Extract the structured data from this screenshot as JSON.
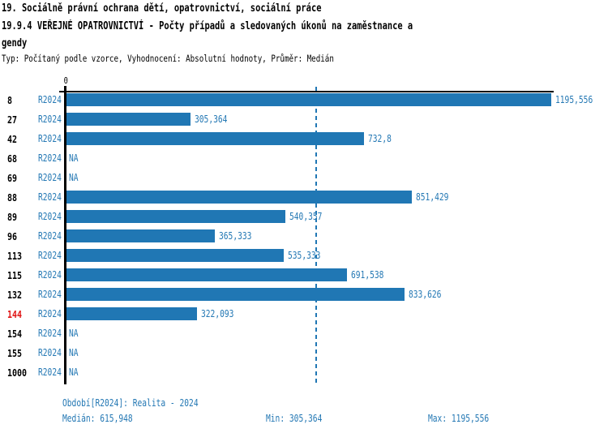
{
  "header": {
    "title": "19. Sociálně právní ochrana dětí, opatrovnictví, sociální práce",
    "subtitle_line1": "19.9.4 VEŘEJNÉ OPATROVNICTVÍ - Počty případů a sledovaných úkonů na zaměstnance a",
    "subtitle_line2": "gendy",
    "meta": "Typ: Počítaný podle vzorce, Vyhodnocení: Absolutní hodnoty, Průměr: Medián"
  },
  "chart_data": {
    "type": "bar",
    "orientation": "horizontal",
    "title": "19.9.4 VEŘEJNÉ OPATROVNICTVÍ - Počty případů a sledovaných úkonů na zaměstnance agendy",
    "xlabel": "",
    "ylabel": "",
    "axis_tick_label": "0",
    "xlim": [
      0,
      1195.556
    ],
    "grid": false,
    "legend": false,
    "series_label": "R2024",
    "median_value": 615.948,
    "median_line": true,
    "na_text": "NA",
    "categories": [
      "8",
      "27",
      "42",
      "68",
      "69",
      "88",
      "89",
      "96",
      "113",
      "115",
      "132",
      "144",
      "154",
      "155",
      "1000"
    ],
    "rows": [
      {
        "code": "8",
        "period": "R2024",
        "value": 1195.556,
        "display": "1195,556",
        "highlight": false
      },
      {
        "code": "27",
        "period": "R2024",
        "value": 305.364,
        "display": "305,364",
        "highlight": false
      },
      {
        "code": "42",
        "period": "R2024",
        "value": 732.8,
        "display": "732,8",
        "highlight": false
      },
      {
        "code": "68",
        "period": "R2024",
        "value": null,
        "display": "NA",
        "highlight": false
      },
      {
        "code": "69",
        "period": "R2024",
        "value": null,
        "display": "NA",
        "highlight": false
      },
      {
        "code": "88",
        "period": "R2024",
        "value": 851.429,
        "display": "851,429",
        "highlight": false
      },
      {
        "code": "89",
        "period": "R2024",
        "value": 540.357,
        "display": "540,357",
        "highlight": false
      },
      {
        "code": "96",
        "period": "R2024",
        "value": 365.333,
        "display": "365,333",
        "highlight": false
      },
      {
        "code": "113",
        "period": "R2024",
        "value": 535.333,
        "display": "535,333",
        "highlight": false
      },
      {
        "code": "115",
        "period": "R2024",
        "value": 691.538,
        "display": "691,538",
        "highlight": false
      },
      {
        "code": "132",
        "period": "R2024",
        "value": 833.626,
        "display": "833,626",
        "highlight": false
      },
      {
        "code": "144",
        "period": "R2024",
        "value": 322.093,
        "display": "322,093",
        "highlight": true
      },
      {
        "code": "154",
        "period": "R2024",
        "value": null,
        "display": "NA",
        "highlight": false
      },
      {
        "code": "155",
        "period": "R2024",
        "value": null,
        "display": "NA",
        "highlight": false
      },
      {
        "code": "1000",
        "period": "R2024",
        "value": null,
        "display": "NA",
        "highlight": false
      }
    ]
  },
  "footer": {
    "period_label": "Období[R2024]: Realita - 2024",
    "median_label": "Medián: 615,948",
    "min_label": "Min: 305,364",
    "max_label": "Max: 1195,556"
  },
  "colors": {
    "bar_blue": "#2077b4",
    "text_blue": "#2478b4",
    "highlight_red": "#e01414",
    "axis_black": "#000000"
  }
}
